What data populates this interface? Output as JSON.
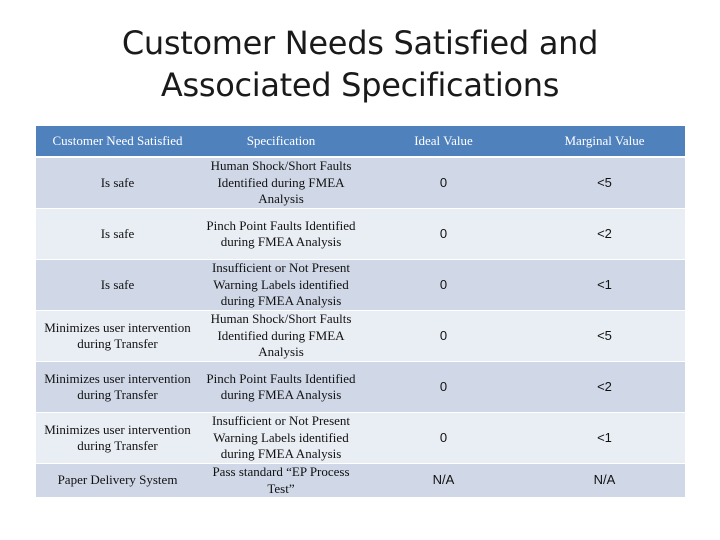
{
  "title": {
    "line1": "Customer Needs Satisfied and",
    "line2": "Associated Specifications"
  },
  "table": {
    "headers": [
      "Customer Need Satisfied",
      "Specification",
      "Ideal Value",
      "Marginal Value"
    ],
    "rows": [
      {
        "need": "Is safe",
        "spec": "Human Shock/Short Faults Identified during FMEA Analysis",
        "ideal": "0",
        "marginal": "<5"
      },
      {
        "need": "Is safe",
        "spec": "Pinch Point Faults Identified during FMEA Analysis",
        "ideal": "0",
        "marginal": "<2"
      },
      {
        "need": "Is safe",
        "spec": "Insufficient or Not Present Warning Labels identified during FMEA Analysis",
        "ideal": "0",
        "marginal": "<1"
      },
      {
        "need": "Minimizes user intervention during Transfer",
        "spec": "Human Shock/Short Faults Identified during FMEA Analysis",
        "ideal": "0",
        "marginal": "<5"
      },
      {
        "need": "Minimizes user intervention during Transfer",
        "spec": "Pinch Point Faults Identified during FMEA Analysis",
        "ideal": "0",
        "marginal": "<2"
      },
      {
        "need": "Minimizes user intervention during Transfer",
        "spec": "Insufficient or Not Present Warning Labels identified during FMEA Analysis",
        "ideal": "0",
        "marginal": "<1"
      },
      {
        "need": "Paper Delivery System",
        "spec": "Pass standard “EP Process Test”",
        "ideal": "N/A",
        "marginal": "N/A"
      }
    ]
  }
}
